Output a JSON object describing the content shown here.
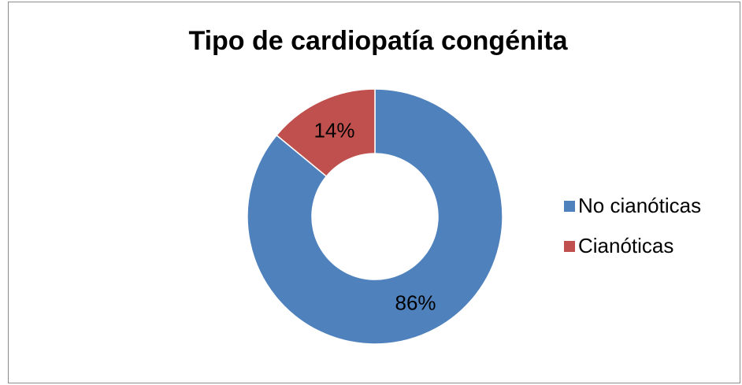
{
  "chart_data": {
    "type": "donut",
    "title": "Tipo de cardiopatía congénita",
    "categories": [
      "No cianóticas",
      "Cianóticas"
    ],
    "values": [
      86,
      14
    ],
    "value_labels": [
      "86%",
      "14%"
    ],
    "colors": [
      "#4f81bd",
      "#c0504d"
    ],
    "legend": "right"
  }
}
